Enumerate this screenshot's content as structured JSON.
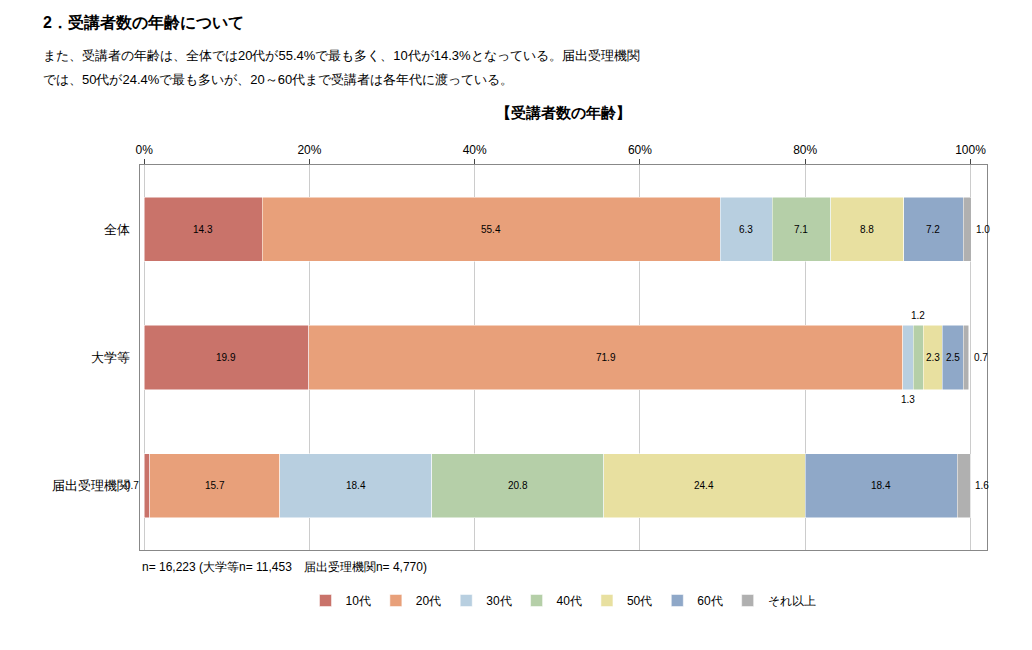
{
  "chart_data": {
    "type": "bar",
    "orientation": "horizontal",
    "stacked": true,
    "title": "【受講者数の年齢】",
    "subtitle": "2．受講者数の年齢について",
    "annotations": [
      "また、受講者の年齢は、全体では20代が55.4%で最も多く、10代が14.3%となっている。届出受理機関",
      "では、50代が24.4%で最も多いが、20～60代まで受講者は各年代に渡っている。",
      "n= 16,223 (大学等n= 11,453　届出受理機関n= 4,770)"
    ],
    "categories": [
      "全体",
      "大学等",
      "届出受理機関"
    ],
    "series": [
      {
        "name": "10代",
        "color": "#c9736a",
        "values": [
          14.3,
          19.9,
          0.7
        ],
        "value_labels": [
          "14.3",
          "19.9",
          "0.7"
        ]
      },
      {
        "name": "20代",
        "color": "#e8a07a",
        "values": [
          55.4,
          71.9,
          15.7
        ],
        "value_labels": [
          "55.4",
          "71.9",
          "15.7"
        ]
      },
      {
        "name": "30代",
        "color": "#b8cfe0",
        "values": [
          6.3,
          1.3,
          18.4
        ],
        "value_labels": [
          "6.3",
          "1.3",
          "18.4"
        ]
      },
      {
        "name": "40代",
        "color": "#b5cfa8",
        "values": [
          7.1,
          1.2,
          20.8
        ],
        "value_labels": [
          "7.1",
          "1.2",
          "20.8"
        ]
      },
      {
        "name": "50代",
        "color": "#e8e0a0",
        "values": [
          8.8,
          2.3,
          24.4
        ],
        "value_labels": [
          "8.8",
          "2.3",
          "24.4"
        ]
      },
      {
        "name": "60代",
        "color": "#8fa8c8",
        "values": [
          7.2,
          2.5,
          18.4
        ],
        "value_labels": [
          "7.2",
          "2.5",
          "18.4"
        ]
      },
      {
        "name": "それ以上",
        "color": "#b0b0b0",
        "values": [
          1.0,
          0.7,
          1.6
        ],
        "value_labels": [
          "1.0",
          "0.7",
          "1.6"
        ]
      }
    ],
    "xlim": [
      -0.5,
      102
    ],
    "xticks": [
      {
        "value": 0,
        "label": "0%"
      },
      {
        "value": 20,
        "label": "20%"
      },
      {
        "value": 40,
        "label": "40%"
      },
      {
        "value": 60,
        "label": "60%"
      },
      {
        "value": 80,
        "label": "80%"
      },
      {
        "value": 100,
        "label": "100%"
      }
    ],
    "grid": true,
    "data_labels": true,
    "legend": "bottom"
  }
}
